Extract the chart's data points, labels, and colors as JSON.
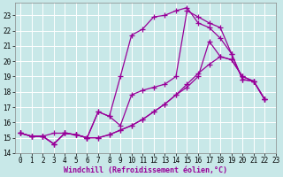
{
  "background_color": "#c8e8e8",
  "grid_color": "#ffffff",
  "line_color": "#990099",
  "marker": "+",
  "markersize": 4,
  "linewidth": 0.9,
  "xlim": [
    -0.5,
    23
  ],
  "ylim": [
    14,
    23.8
  ],
  "yticks": [
    14,
    15,
    16,
    17,
    18,
    19,
    20,
    21,
    22,
    23
  ],
  "xticks": [
    0,
    1,
    2,
    3,
    4,
    5,
    6,
    7,
    8,
    9,
    10,
    11,
    12,
    13,
    14,
    15,
    16,
    17,
    18,
    19,
    20,
    21,
    22,
    23
  ],
  "xlabel": "Windchill (Refroidissement éolien,°C)",
  "xlabel_fontsize": 6,
  "tick_fontsize": 5.5,
  "series": [
    [
      15.3,
      15.1,
      15.1,
      14.6,
      15.3,
      15.2,
      15.0,
      15.0,
      15.2,
      15.5,
      15.8,
      16.2,
      16.7,
      17.2,
      17.8,
      18.5,
      19.2,
      19.8,
      20.3,
      20.1,
      19.0,
      18.7,
      17.5
    ],
    [
      15.3,
      15.1,
      15.1,
      15.3,
      15.3,
      15.2,
      15.0,
      15.0,
      15.2,
      15.5,
      15.8,
      16.2,
      16.7,
      17.2,
      17.8,
      18.3,
      19.0,
      21.3,
      20.3,
      20.1,
      19.0,
      18.7,
      17.5
    ],
    [
      15.3,
      15.1,
      15.1,
      14.6,
      15.3,
      15.2,
      15.0,
      16.7,
      16.4,
      15.8,
      17.8,
      18.1,
      18.3,
      18.5,
      19.0,
      23.3,
      22.9,
      22.5,
      22.2,
      20.5,
      18.8,
      18.7,
      17.5
    ],
    [
      15.3,
      15.1,
      15.1,
      14.6,
      15.3,
      15.2,
      15.0,
      16.7,
      16.4,
      19.0,
      21.7,
      22.1,
      22.9,
      23.0,
      23.3,
      23.5,
      22.5,
      22.2,
      21.5,
      20.5,
      18.8,
      18.7,
      17.5
    ]
  ]
}
